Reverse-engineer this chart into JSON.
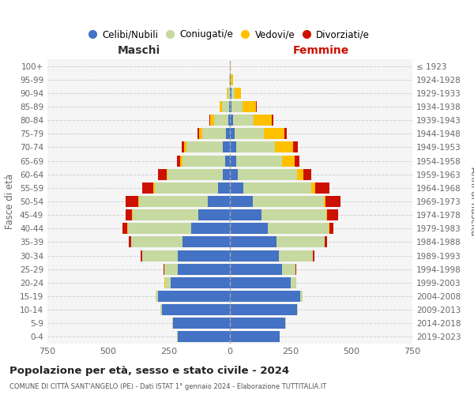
{
  "age_groups": [
    "0-4",
    "5-9",
    "10-14",
    "15-19",
    "20-24",
    "25-29",
    "30-34",
    "35-39",
    "40-44",
    "45-49",
    "50-54",
    "55-59",
    "60-64",
    "65-69",
    "70-74",
    "75-79",
    "80-84",
    "85-89",
    "90-94",
    "95-99",
    "100+"
  ],
  "birth_years": [
    "2019-2023",
    "2014-2018",
    "2009-2013",
    "2004-2008",
    "1999-2003",
    "1994-1998",
    "1989-1993",
    "1984-1988",
    "1979-1983",
    "1974-1978",
    "1969-1973",
    "1964-1968",
    "1959-1963",
    "1954-1958",
    "1949-1953",
    "1944-1948",
    "1939-1943",
    "1934-1938",
    "1929-1933",
    "1924-1928",
    "≤ 1923"
  ],
  "colors": {
    "celibi": "#4472c4",
    "coniugati": "#c5d9a0",
    "vedovi": "#ffc000",
    "divorziati": "#cc1100"
  },
  "males": {
    "celibi": [
      215,
      235,
      280,
      295,
      245,
      215,
      215,
      195,
      160,
      130,
      90,
      50,
      30,
      20,
      30,
      15,
      7,
      3,
      1,
      0,
      0
    ],
    "coniugati": [
      1,
      2,
      5,
      10,
      22,
      55,
      145,
      210,
      260,
      270,
      285,
      260,
      225,
      175,
      148,
      98,
      58,
      28,
      8,
      2,
      0
    ],
    "vedovi": [
      0,
      0,
      0,
      0,
      1,
      1,
      1,
      2,
      2,
      2,
      3,
      5,
      5,
      8,
      10,
      15,
      15,
      10,
      5,
      2,
      0
    ],
    "divorziati": [
      0,
      0,
      0,
      0,
      1,
      2,
      5,
      10,
      18,
      25,
      50,
      45,
      35,
      15,
      10,
      5,
      3,
      1,
      0,
      0,
      0
    ]
  },
  "females": {
    "celibi": [
      205,
      228,
      275,
      290,
      250,
      215,
      200,
      190,
      155,
      130,
      95,
      55,
      32,
      25,
      25,
      20,
      12,
      8,
      5,
      2,
      1
    ],
    "coniugati": [
      1,
      2,
      5,
      10,
      22,
      55,
      140,
      198,
      250,
      265,
      290,
      280,
      245,
      190,
      160,
      120,
      85,
      45,
      15,
      2,
      0
    ],
    "vedovi": [
      0,
      0,
      0,
      0,
      1,
      1,
      1,
      2,
      3,
      5,
      8,
      15,
      25,
      50,
      75,
      85,
      75,
      55,
      25,
      8,
      1
    ],
    "divorziati": [
      0,
      0,
      0,
      0,
      1,
      2,
      5,
      10,
      18,
      45,
      60,
      60,
      32,
      20,
      20,
      8,
      5,
      2,
      1,
      0,
      0
    ]
  },
  "xlim": 750,
  "title": "Popolazione per età, sesso e stato civile - 2024",
  "subtitle": "COMUNE DI CITTÀ SANT'ANGELO (PE) - Dati ISTAT 1° gennaio 2024 - Elaborazione TUTTITALIA.IT",
  "xlabel_left": "Maschi",
  "xlabel_right": "Femmine",
  "ylabel_left": "Fasce di età",
  "legend_labels": [
    "Celibi/Nubili",
    "Coniugati/e",
    "Vedovi/e",
    "Divorziati/e"
  ],
  "bg_color": "#ffffff",
  "plot_bg_color": "#f5f5f5",
  "grid_color": "#d0d0d0"
}
